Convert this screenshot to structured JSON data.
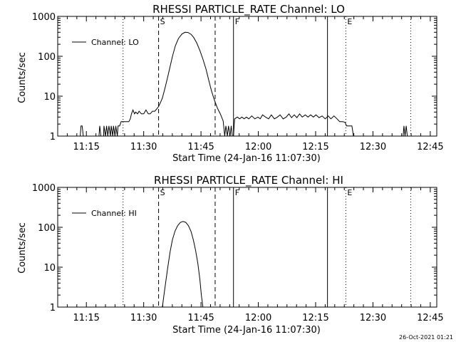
{
  "footer_timestamp": "26-Oct-2021 01:21",
  "chart_data": [
    {
      "type": "line",
      "title": "RHESSI PARTICLE_RATE Channel: LO",
      "xlabel": "Start Time (24-Jan-16 11:07:30)",
      "ylabel": "Counts/sec",
      "xaxis_unit": "minutes after 11:07:30",
      "xlim": [
        0,
        99.2
      ],
      "ylim": [
        1,
        1000
      ],
      "yscale": "log",
      "xticks": [
        {
          "label": "11:15",
          "x": 7.5
        },
        {
          "label": "11:30",
          "x": 22.5
        },
        {
          "label": "11:45",
          "x": 37.5
        },
        {
          "label": "12:00",
          "x": 52.5
        },
        {
          "label": "12:15",
          "x": 67.5
        },
        {
          "label": "12:30",
          "x": 82.5
        },
        {
          "label": "12:45",
          "x": 97.5
        }
      ],
      "yticks": [
        {
          "label": "1",
          "v": 1
        },
        {
          "label": "10",
          "v": 10
        },
        {
          "label": "100",
          "v": 100
        },
        {
          "label": "1000",
          "v": 1000
        }
      ],
      "legend": {
        "text": "Channel: LO",
        "placement": "top-left"
      },
      "markers": [
        {
          "x": 17.1,
          "style": "dotted",
          "label": ""
        },
        {
          "x": 26.4,
          "style": "dashed",
          "label": "S"
        },
        {
          "x": 41.2,
          "style": "dashed",
          "label": ""
        },
        {
          "x": 46.0,
          "style": "solid",
          "label": "F"
        },
        {
          "x": 70.6,
          "style": "solid",
          "label": ""
        },
        {
          "x": 75.4,
          "style": "dotted",
          "label": "E"
        },
        {
          "x": 92.4,
          "style": "dotted",
          "label": ""
        }
      ],
      "series": [
        {
          "values": [
            [
              5.5,
              1
            ],
            [
              5.9,
              1
            ],
            [
              6.1,
              1.8
            ],
            [
              6.4,
              1.8
            ],
            [
              6.7,
              1
            ],
            [
              7.0,
              1
            ],
            [
              10.8,
              1
            ],
            [
              11.0,
              1.8
            ],
            [
              11.3,
              1
            ],
            [
              12.0,
              1
            ],
            [
              12.1,
              1.8
            ],
            [
              12.5,
              1
            ],
            [
              12.8,
              1.8
            ],
            [
              13.1,
              1
            ],
            [
              13.4,
              1.8
            ],
            [
              13.8,
              1
            ],
            [
              14.0,
              1.8
            ],
            [
              14.4,
              1
            ],
            [
              14.6,
              1.8
            ],
            [
              15.0,
              1
            ],
            [
              15.2,
              1.8
            ],
            [
              15.6,
              1
            ],
            [
              15.8,
              1.8
            ],
            [
              16.2,
              1.8
            ],
            [
              16.6,
              2.3
            ],
            [
              17.1,
              2.3
            ],
            [
              17.6,
              2.3
            ],
            [
              18.2,
              2.3
            ],
            [
              18.6,
              2.3
            ],
            [
              19.0,
              2.7
            ],
            [
              19.3,
              3.6
            ],
            [
              19.7,
              4.5
            ],
            [
              20.1,
              3.6
            ],
            [
              20.4,
              4.0
            ],
            [
              20.9,
              3.6
            ],
            [
              21.3,
              4.2
            ],
            [
              21.9,
              3.6
            ],
            [
              22.5,
              3.6
            ],
            [
              23.1,
              4.5
            ],
            [
              23.7,
              3.6
            ],
            [
              24.2,
              3.6
            ],
            [
              24.8,
              4.2
            ],
            [
              25.4,
              4.2
            ],
            [
              25.9,
              4.8
            ],
            [
              26.4,
              5.5
            ],
            [
              26.9,
              7
            ],
            [
              27.4,
              9
            ],
            [
              28.0,
              15
            ],
            [
              28.7,
              28
            ],
            [
              29.4,
              55
            ],
            [
              30.1,
              105
            ],
            [
              30.8,
              185
            ],
            [
              31.6,
              280
            ],
            [
              32.5,
              360
            ],
            [
              33.3,
              400
            ],
            [
              34.1,
              395
            ],
            [
              34.9,
              355
            ],
            [
              35.6,
              295
            ],
            [
              36.4,
              215
            ],
            [
              37.2,
              140
            ],
            [
              38.0,
              85
            ],
            [
              38.8,
              48
            ],
            [
              39.5,
              26
            ],
            [
              40.2,
              14
            ],
            [
              41.0,
              8
            ],
            [
              41.8,
              5
            ],
            [
              42.6,
              3.5
            ],
            [
              43.3,
              2.4
            ],
            [
              43.7,
              1
            ],
            [
              44.0,
              1.8
            ],
            [
              44.4,
              1
            ],
            [
              44.7,
              1.8
            ],
            [
              45.1,
              1
            ],
            [
              45.4,
              1.8
            ],
            [
              45.7,
              1
            ],
            [
              46.0,
              1
            ],
            [
              46.3,
              2.7
            ],
            [
              47.0,
              3.0
            ],
            [
              47.6,
              2.7
            ],
            [
              48.2,
              3.0
            ],
            [
              48.8,
              2.7
            ],
            [
              49.4,
              3.0
            ],
            [
              50.0,
              2.7
            ],
            [
              50.8,
              3.2
            ],
            [
              51.6,
              2.7
            ],
            [
              52.4,
              3.0
            ],
            [
              53.0,
              2.7
            ],
            [
              53.6,
              3.4
            ],
            [
              54.4,
              3.0
            ],
            [
              55.2,
              2.7
            ],
            [
              55.9,
              3.4
            ],
            [
              56.7,
              2.7
            ],
            [
              57.5,
              3.0
            ],
            [
              58.2,
              3.4
            ],
            [
              59.0,
              2.7
            ],
            [
              59.8,
              3.0
            ],
            [
              60.5,
              3.6
            ],
            [
              61.2,
              2.9
            ],
            [
              61.9,
              3.4
            ],
            [
              62.6,
              2.9
            ],
            [
              63.3,
              3.6
            ],
            [
              64.0,
              3.0
            ],
            [
              64.8,
              3.4
            ],
            [
              65.5,
              3.0
            ],
            [
              66.2,
              3.4
            ],
            [
              66.9,
              3.0
            ],
            [
              67.6,
              3.4
            ],
            [
              68.4,
              2.9
            ],
            [
              69.2,
              3.2
            ],
            [
              70.0,
              2.7
            ],
            [
              70.8,
              3.2
            ],
            [
              71.5,
              2.7
            ],
            [
              72.3,
              3.2
            ],
            [
              73.1,
              2.7
            ],
            [
              73.8,
              2.3
            ],
            [
              74.6,
              2.3
            ],
            [
              75.2,
              2.2
            ],
            [
              75.6,
              1.8
            ],
            [
              77.0,
              1.8
            ],
            [
              77.4,
              1
            ],
            [
              78.2,
              1
            ],
            [
              90.4,
              1
            ],
            [
              90.6,
              1.8
            ],
            [
              90.9,
              1
            ],
            [
              91.2,
              1.8
            ],
            [
              91.5,
              1
            ]
          ]
        }
      ]
    },
    {
      "type": "line",
      "title": "RHESSI PARTICLE_RATE Channel: HI",
      "xlabel": "Start Time (24-Jan-16 11:07:30)",
      "ylabel": "Counts/sec",
      "xaxis_unit": "minutes after 11:07:30",
      "xlim": [
        0,
        99.2
      ],
      "ylim": [
        1,
        1000
      ],
      "yscale": "log",
      "xticks": [
        {
          "label": "11:15",
          "x": 7.5
        },
        {
          "label": "11:30",
          "x": 22.5
        },
        {
          "label": "11:45",
          "x": 37.5
        },
        {
          "label": "12:00",
          "x": 52.5
        },
        {
          "label": "12:15",
          "x": 67.5
        },
        {
          "label": "12:30",
          "x": 82.5
        },
        {
          "label": "12:45",
          "x": 97.5
        }
      ],
      "yticks": [
        {
          "label": "1",
          "v": 1
        },
        {
          "label": "10",
          "v": 10
        },
        {
          "label": "100",
          "v": 100
        },
        {
          "label": "1000",
          "v": 1000
        }
      ],
      "legend": {
        "text": "Channel: HI",
        "placement": "top-left"
      },
      "markers": [
        {
          "x": 17.1,
          "style": "dotted",
          "label": ""
        },
        {
          "x": 26.4,
          "style": "dashed",
          "label": "S"
        },
        {
          "x": 41.2,
          "style": "dashed",
          "label": ""
        },
        {
          "x": 46.0,
          "style": "solid",
          "label": "F"
        },
        {
          "x": 70.6,
          "style": "solid",
          "label": ""
        },
        {
          "x": 75.4,
          "style": "dotted",
          "label": "E"
        },
        {
          "x": 92.4,
          "style": "dotted",
          "label": ""
        }
      ],
      "series": [
        {
          "values": [
            [
              27.4,
              1
            ],
            [
              27.8,
              2
            ],
            [
              28.3,
              4.5
            ],
            [
              28.8,
              10
            ],
            [
              29.4,
              24
            ],
            [
              30.0,
              48
            ],
            [
              30.7,
              80
            ],
            [
              31.4,
              110
            ],
            [
              32.1,
              132
            ],
            [
              32.8,
              140
            ],
            [
              33.5,
              133
            ],
            [
              34.2,
              110
            ],
            [
              34.9,
              78
            ],
            [
              35.5,
              48
            ],
            [
              36.1,
              26
            ],
            [
              36.7,
              12
            ],
            [
              37.2,
              5
            ],
            [
              37.6,
              2
            ],
            [
              38.0,
              1
            ]
          ]
        }
      ]
    }
  ]
}
